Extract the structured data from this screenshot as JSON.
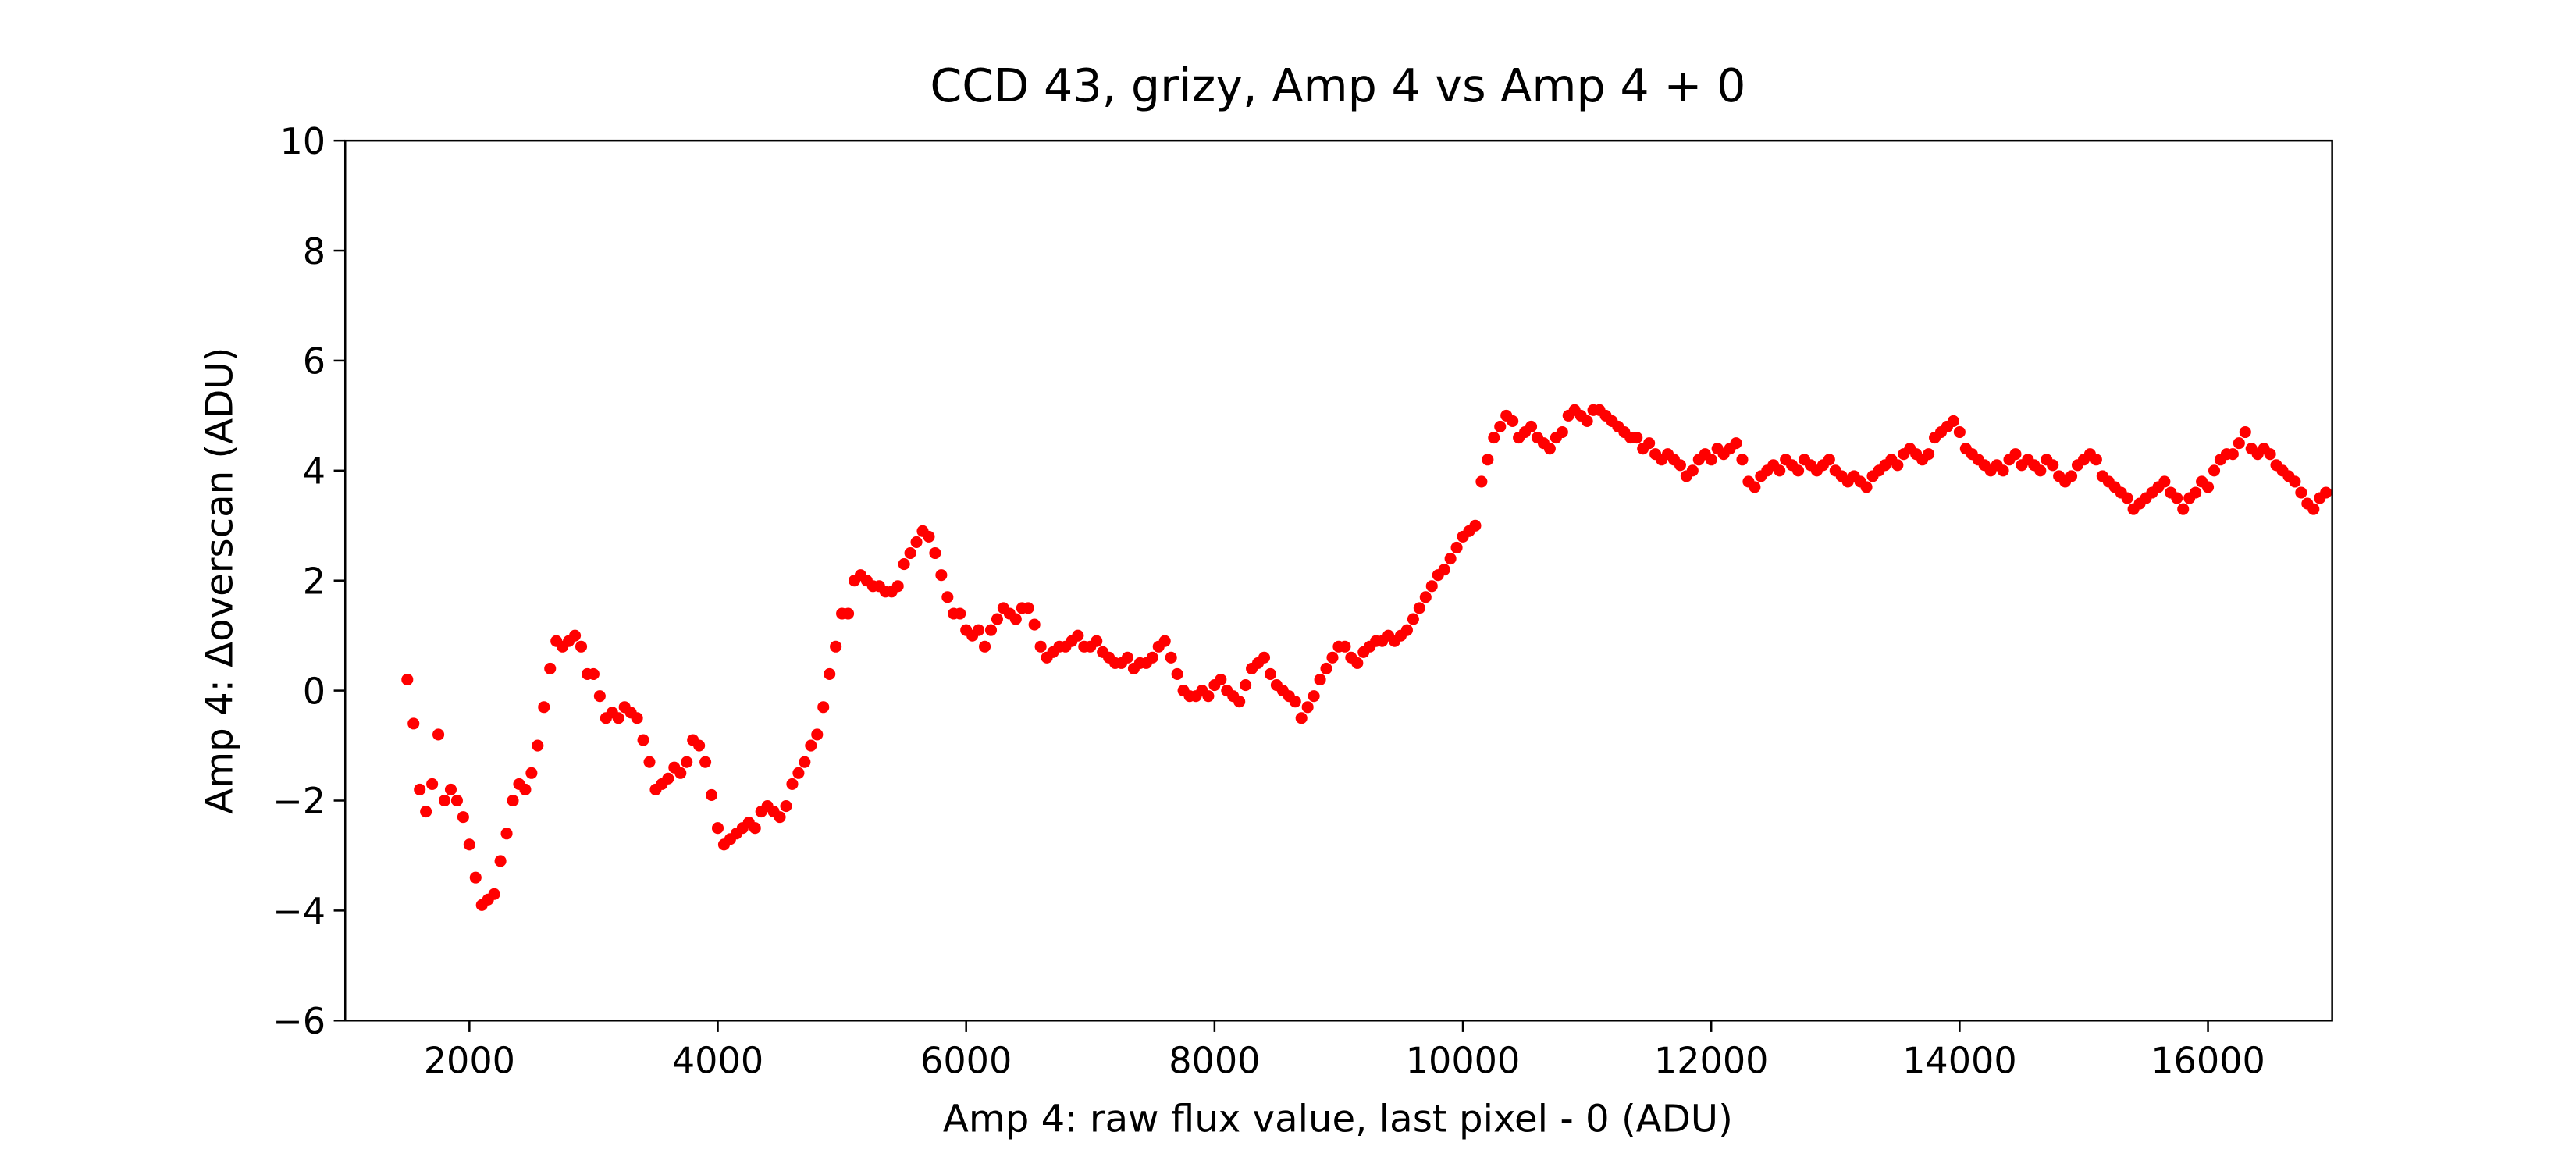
{
  "chart_data": {
    "type": "scatter",
    "title": "CCD 43, grizy, Amp 4 vs Amp 4 + 0",
    "x_label": "Amp 4: raw flux value, last pixel - 0 (ADU)",
    "y_label": "Amp 4: Δoverscan (ADU)",
    "xlim": [
      1000,
      17000
    ],
    "ylim": [
      -6,
      10
    ],
    "xticks": [
      2000,
      4000,
      6000,
      8000,
      10000,
      12000,
      14000,
      16000
    ],
    "yticks": [
      {
        "value": -6,
        "label": "−6"
      },
      {
        "value": -4,
        "label": "−4"
      },
      {
        "value": -2,
        "label": "−2"
      },
      0,
      2,
      4,
      6,
      8,
      10
    ],
    "grid": false,
    "series": [
      {
        "color": "#ff0000",
        "x": [
          1500,
          1550,
          1600,
          1650,
          1700,
          1750,
          1800,
          1850,
          1900,
          1950,
          2000,
          2050,
          2100,
          2150,
          2200,
          2250,
          2300,
          2350,
          2400,
          2450,
          2500,
          2550,
          2600,
          2650,
          2700,
          2750,
          2800,
          2850,
          2900,
          2950,
          3000,
          3050,
          3100,
          3150,
          3200,
          3250,
          3300,
          3350,
          3400,
          3450,
          3500,
          3550,
          3600,
          3650,
          3700,
          3750,
          3800,
          3850,
          3900,
          3950,
          4000,
          4050,
          4100,
          4150,
          4200,
          4250,
          4300,
          4350,
          4400,
          4450,
          4500,
          4550,
          4600,
          4650,
          4700,
          4750,
          4800,
          4850,
          4900,
          4950,
          5000,
          5050,
          5100,
          5150,
          5200,
          5250,
          5300,
          5350,
          5400,
          5450,
          5500,
          5550,
          5600,
          5650,
          5700,
          5750,
          5800,
          5850,
          5900,
          5950,
          6000,
          6050,
          6100,
          6150,
          6200,
          6250,
          6300,
          6350,
          6400,
          6450,
          6500,
          6550,
          6600,
          6650,
          6700,
          6750,
          6800,
          6850,
          6900,
          6950,
          7000,
          7050,
          7100,
          7150,
          7200,
          7250,
          7300,
          7350,
          7400,
          7450,
          7500,
          7550,
          7600,
          7650,
          7700,
          7750,
          7800,
          7850,
          7900,
          7950,
          8000,
          8050,
          8100,
          8150,
          8200,
          8250,
          8300,
          8350,
          8400,
          8450,
          8500,
          8550,
          8600,
          8650,
          8700,
          8750,
          8800,
          8850,
          8900,
          8950,
          9000,
          9050,
          9100,
          9150,
          9200,
          9250,
          9300,
          9350,
          9400,
          9450,
          9500,
          9550,
          9600,
          9650,
          9700,
          9750,
          9800,
          9850,
          9900,
          9950,
          10000,
          10050,
          10100,
          10150,
          10200,
          10250,
          10300,
          10350,
          10400,
          10450,
          10500,
          10550,
          10600,
          10650,
          10700,
          10750,
          10800,
          10850,
          10900,
          10950,
          11000,
          11050,
          11100,
          11150,
          11200,
          11250,
          11300,
          11350,
          11400,
          11450,
          11500,
          11550,
          11600,
          11650,
          11700,
          11750,
          11800,
          11850,
          11900,
          11950,
          12000,
          12050,
          12100,
          12150,
          12200,
          12250,
          12300,
          12350,
          12400,
          12450,
          12500,
          12550,
          12600,
          12650,
          12700,
          12750,
          12800,
          12850,
          12900,
          12950,
          13000,
          13050,
          13100,
          13150,
          13200,
          13250,
          13300,
          13350,
          13400,
          13450,
          13500,
          13550,
          13600,
          13650,
          13700,
          13750,
          13800,
          13850,
          13900,
          13950,
          14000,
          14050,
          14100,
          14150,
          14200,
          14250,
          14300,
          14350,
          14400,
          14450,
          14500,
          14550,
          14600,
          14650,
          14700,
          14750,
          14800,
          14850,
          14900,
          14950,
          15000,
          15050,
          15100,
          15150,
          15200,
          15250,
          15300,
          15350,
          15400,
          15450,
          15500,
          15550,
          15600,
          15650,
          15700,
          15750,
          15800,
          15850,
          15900,
          15950,
          16000,
          16050,
          16100,
          16150,
          16200,
          16250,
          16300,
          16350,
          16400,
          16450,
          16500,
          16550,
          16600,
          16650,
          16700,
          16750,
          16800,
          16850,
          16900,
          16950
        ],
        "values": [
          0.2,
          -0.6,
          -1.8,
          -2.2,
          -1.7,
          -0.8,
          -2.0,
          -1.8,
          -2.0,
          -2.3,
          -2.8,
          -3.4,
          -3.9,
          -3.8,
          -3.7,
          -3.1,
          -2.6,
          -2.0,
          -1.7,
          -1.8,
          -1.5,
          -1.0,
          -0.3,
          0.4,
          0.9,
          0.8,
          0.9,
          1.0,
          0.8,
          0.3,
          0.3,
          -0.1,
          -0.5,
          -0.4,
          -0.5,
          -0.3,
          -0.4,
          -0.5,
          -0.9,
          -1.3,
          -1.8,
          -1.7,
          -1.6,
          -1.4,
          -1.5,
          -1.3,
          -0.9,
          -1.0,
          -1.3,
          -1.9,
          -2.5,
          -2.8,
          -2.7,
          -2.6,
          -2.5,
          -2.4,
          -2.5,
          -2.2,
          -2.1,
          -2.2,
          -2.3,
          -2.1,
          -1.7,
          -1.5,
          -1.3,
          -1.0,
          -0.8,
          -0.3,
          0.3,
          0.8,
          1.4,
          1.4,
          2.0,
          2.1,
          2.0,
          1.9,
          1.9,
          1.8,
          1.8,
          1.9,
          2.3,
          2.5,
          2.7,
          2.9,
          2.8,
          2.5,
          2.1,
          1.7,
          1.4,
          1.4,
          1.1,
          1.0,
          1.1,
          0.8,
          1.1,
          1.3,
          1.5,
          1.4,
          1.3,
          1.5,
          1.5,
          1.2,
          0.8,
          0.6,
          0.7,
          0.8,
          0.8,
          0.9,
          1.0,
          0.8,
          0.8,
          0.9,
          0.7,
          0.6,
          0.5,
          0.5,
          0.6,
          0.4,
          0.5,
          0.5,
          0.6,
          0.8,
          0.9,
          0.6,
          0.3,
          0.0,
          -0.1,
          -0.1,
          0.0,
          -0.1,
          0.1,
          0.2,
          0.0,
          -0.1,
          -0.2,
          0.1,
          0.4,
          0.5,
          0.6,
          0.3,
          0.1,
          0.0,
          -0.1,
          -0.2,
          -0.5,
          -0.3,
          -0.1,
          0.2,
          0.4,
          0.6,
          0.8,
          0.8,
          0.6,
          0.5,
          0.7,
          0.8,
          0.9,
          0.9,
          1.0,
          0.9,
          1.0,
          1.1,
          1.3,
          1.5,
          1.7,
          1.9,
          2.1,
          2.2,
          2.4,
          2.6,
          2.8,
          2.9,
          3.0,
          3.8,
          4.2,
          4.6,
          4.8,
          5.0,
          4.9,
          4.6,
          4.7,
          4.8,
          4.6,
          4.5,
          4.4,
          4.6,
          4.7,
          5.0,
          5.1,
          5.0,
          4.9,
          5.1,
          5.1,
          5.0,
          4.9,
          4.8,
          4.7,
          4.6,
          4.6,
          4.4,
          4.5,
          4.3,
          4.2,
          4.3,
          4.2,
          4.1,
          3.9,
          4.0,
          4.2,
          4.3,
          4.2,
          4.4,
          4.3,
          4.4,
          4.5,
          4.2,
          3.8,
          3.7,
          3.9,
          4.0,
          4.1,
          4.0,
          4.2,
          4.1,
          4.0,
          4.2,
          4.1,
          4.0,
          4.1,
          4.2,
          4.0,
          3.9,
          3.8,
          3.9,
          3.8,
          3.7,
          3.9,
          4.0,
          4.1,
          4.2,
          4.1,
          4.3,
          4.4,
          4.3,
          4.2,
          4.3,
          4.6,
          4.7,
          4.8,
          4.9,
          4.7,
          4.4,
          4.3,
          4.2,
          4.1,
          4.0,
          4.1,
          4.0,
          4.2,
          4.3,
          4.1,
          4.2,
          4.1,
          4.0,
          4.2,
          4.1,
          3.9,
          3.8,
          3.9,
          4.1,
          4.2,
          4.3,
          4.2,
          3.9,
          3.8,
          3.7,
          3.6,
          3.5,
          3.3,
          3.4,
          3.5,
          3.6,
          3.7,
          3.8,
          3.6,
          3.5,
          3.3,
          3.5,
          3.6,
          3.8,
          3.7,
          4.0,
          4.2,
          4.3,
          4.3,
          4.5,
          4.7,
          4.4,
          4.3,
          4.4,
          4.3,
          4.1,
          4.0,
          3.9,
          3.8,
          3.6,
          3.4,
          3.3,
          3.5,
          3.6
        ]
      }
    ]
  }
}
